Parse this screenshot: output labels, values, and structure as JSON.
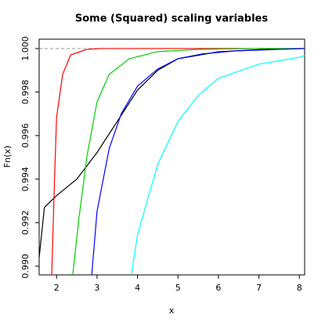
{
  "chart_data": {
    "type": "line",
    "title": "Some (Squared) scaling variables",
    "x_label": "x",
    "y_label": "Fn(x)",
    "xlim": [
      1.57,
      8.13
    ],
    "ylim": [
      0.9896,
      1.00043
    ],
    "xticks": [
      2,
      3,
      4,
      5,
      6,
      7,
      8
    ],
    "yticks": [
      {
        "value": 0.99,
        "label": "0.990"
      },
      {
        "value": 0.992,
        "label": "0.992"
      },
      {
        "value": 0.994,
        "label": "0.994"
      },
      {
        "value": 0.996,
        "label": "0.996"
      },
      {
        "value": 0.998,
        "label": "0.998"
      },
      {
        "value": 1.0,
        "label": "1.000"
      }
    ],
    "hline": 1.0,
    "hline_color": "#999999",
    "series": [
      {
        "color": "#000000",
        "x": [
          1.57,
          1.7,
          2.0,
          2.5,
          3.0,
          3.5,
          4.0,
          4.5,
          5.0,
          6.0,
          7.0,
          8.13
        ],
        "values": [
          0.9904,
          0.9927,
          0.99324,
          0.994,
          0.99522,
          0.99665,
          0.99809,
          0.999,
          0.99953,
          0.99985,
          0.99995,
          1.0
        ]
      },
      {
        "color": "#ff0000",
        "x": [
          1.88,
          1.95,
          2.0,
          2.15,
          2.35,
          2.75,
          3.1,
          8.13
        ],
        "values": [
          0.9896,
          0.994,
          0.99683,
          0.99881,
          0.99971,
          0.99996,
          1.0,
          1.0
        ]
      },
      {
        "color": "#00cd00",
        "x": [
          2.4,
          2.55,
          2.75,
          3.0,
          3.3,
          3.8,
          4.5,
          5.5,
          7.0,
          8.13
        ],
        "values": [
          0.9896,
          0.99216,
          0.99504,
          0.99755,
          0.99881,
          0.99953,
          0.99986,
          0.99996,
          1.0,
          1.0
        ]
      },
      {
        "color": "#0000ff",
        "x": [
          2.87,
          3.0,
          3.3,
          3.6,
          4.0,
          4.5,
          5.0,
          5.6,
          6.4,
          8.13
        ],
        "values": [
          0.9896,
          0.99252,
          0.9954,
          0.99701,
          0.99827,
          0.99906,
          0.99953,
          0.99975,
          0.99989,
          1.0
        ]
      },
      {
        "color": "#00ffff",
        "x": [
          3.85,
          4.0,
          4.5,
          5.0,
          5.5,
          6.0,
          7.0,
          8.0,
          8.13
        ],
        "values": [
          0.9896,
          0.99144,
          0.99468,
          0.99665,
          0.99784,
          0.99863,
          0.99928,
          0.9996,
          0.99968
        ]
      }
    ]
  }
}
